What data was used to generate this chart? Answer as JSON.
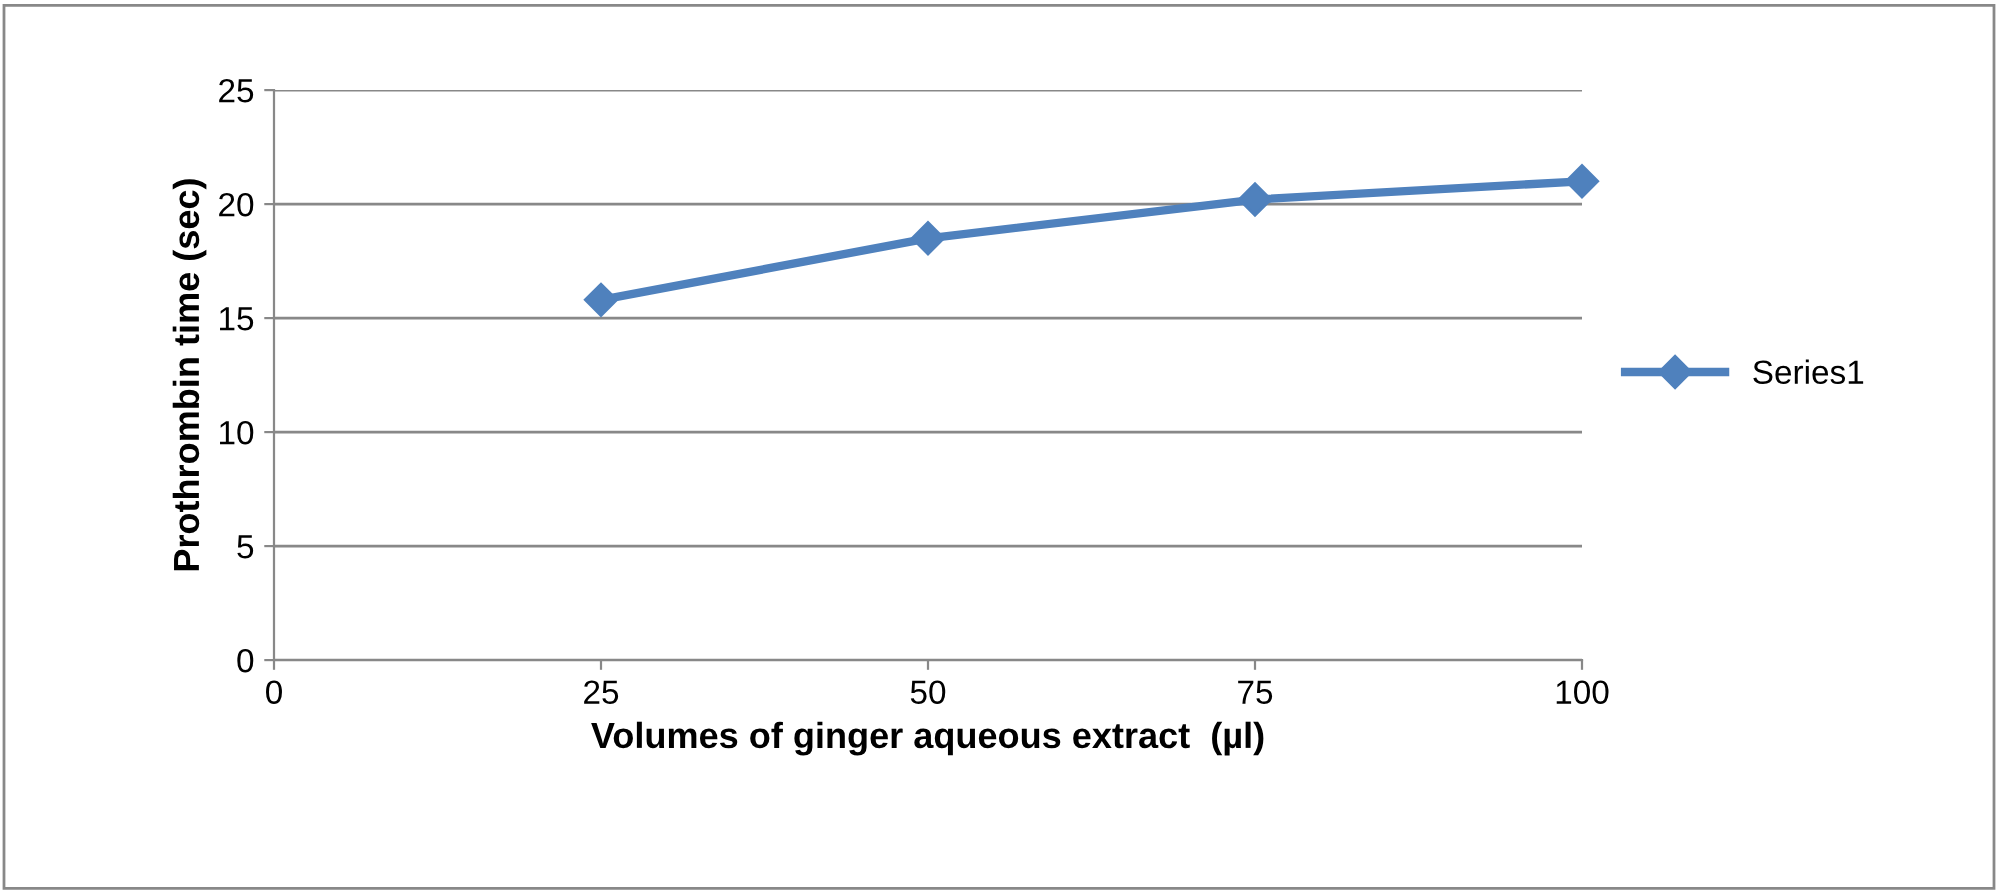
{
  "chart_data": {
    "type": "line",
    "xlabel": "Volumes of ginger aqueous extract  (µl)",
    "ylabel": "Prothrombin time (sec)",
    "x": [
      25,
      50,
      75,
      100
    ],
    "series": [
      {
        "name": "Series1",
        "color": "#4f81bd",
        "values": [
          15.8,
          18.5,
          20.2,
          21.0
        ]
      }
    ],
    "xlim": [
      0,
      100
    ],
    "xticks": [
      0,
      25,
      50,
      75,
      100
    ],
    "ylim": [
      0,
      25
    ],
    "yticks": [
      0,
      5,
      10,
      15,
      20,
      25
    ],
    "grid": "y",
    "legend": "right",
    "marker": "diamond",
    "line_style": "solid"
  }
}
